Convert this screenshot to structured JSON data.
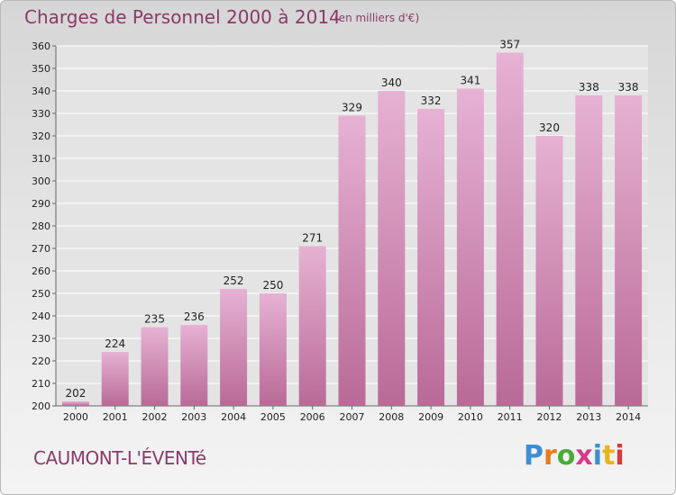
{
  "header": {
    "title": "Charges de Personnel 2000 à 2014",
    "subtitle": "(en milliers d'€)"
  },
  "footer": {
    "location": "CAUMONT-L'ÉVENTé",
    "logo_text": "Proxiti"
  },
  "colors": {
    "bar_light": "#e6b2d3",
    "bar_dark": "#b96a97",
    "title_color": "#8a3a6a",
    "logo_letters": [
      "#3d8ed4",
      "#e87a1e",
      "#4caa3a",
      "#d63a8a",
      "#3d8ed4",
      "#e8b41e",
      "#d63a3a"
    ]
  },
  "chart_data": {
    "type": "bar",
    "title": "Charges de Personnel 2000 à 2014",
    "subtitle": "(en milliers d'€)",
    "xlabel": "",
    "ylabel": "",
    "categories": [
      "2000",
      "2001",
      "2002",
      "2003",
      "2004",
      "2005",
      "2006",
      "2007",
      "2008",
      "2009",
      "2010",
      "2011",
      "2012",
      "2013",
      "2014"
    ],
    "values": [
      202,
      224,
      235,
      236,
      252,
      250,
      271,
      329,
      340,
      332,
      341,
      357,
      320,
      338,
      338
    ],
    "ylim": [
      200,
      360
    ],
    "yticks": [
      200,
      210,
      220,
      230,
      240,
      250,
      260,
      270,
      280,
      290,
      300,
      310,
      320,
      330,
      340,
      350,
      360
    ],
    "grid": true,
    "legend": "none"
  }
}
